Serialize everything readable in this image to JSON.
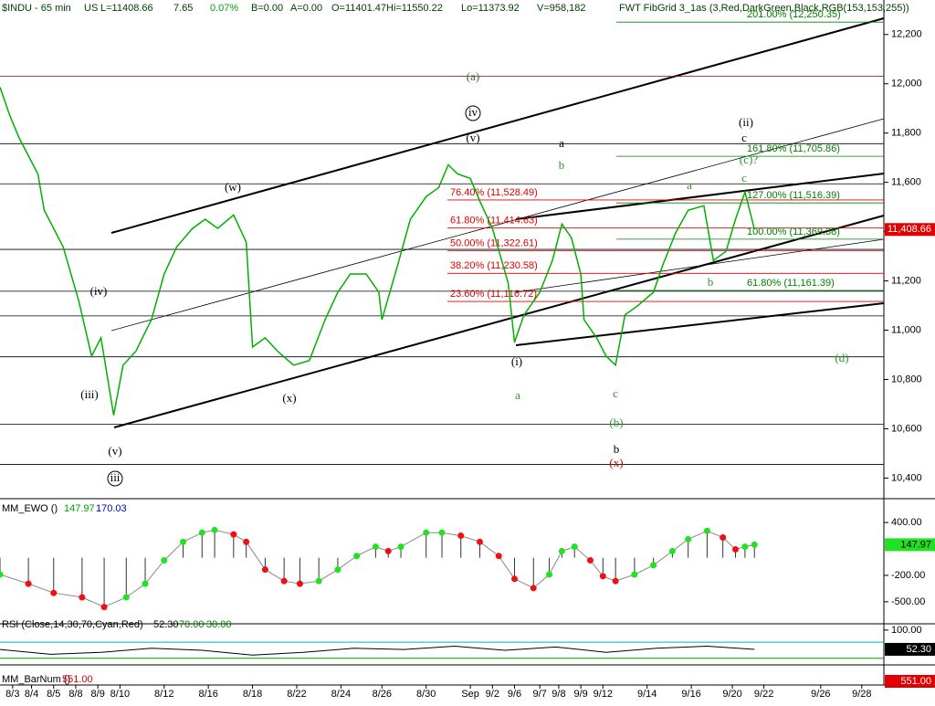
{
  "chart_data": [
    {
      "type": "line",
      "panel": "price",
      "header": [
        "$INDU - 65 min",
        "US",
        "L=11408.66",
        "7.65",
        "0.07%",
        "B=0.00",
        "A=0.00",
        "O=11401.47",
        "Hi=11550.22",
        "Lo=11373.92",
        "V=958,182",
        "FWT FibGrid 3_1as (3,Red,DarkGreen,Black,RGB(153,153,255))"
      ],
      "color": "#00b000",
      "x": [
        0,
        3,
        6,
        12,
        14,
        20,
        25,
        29,
        32,
        36,
        39,
        43,
        48,
        52,
        56,
        61,
        65,
        69,
        74,
        78,
        80,
        84,
        88,
        93,
        98,
        103,
        107,
        111,
        116,
        120,
        121,
        126,
        130,
        135,
        139,
        142,
        145,
        149,
        152,
        156,
        161,
        163,
        166,
        171,
        175,
        178,
        181,
        184,
        185,
        189,
        192,
        195,
        198,
        202,
        207,
        210,
        214,
        218,
        223,
        226,
        230,
        233,
        236,
        239
      ],
      "values": [
        11986,
        11875,
        11782,
        11634,
        11487,
        11339,
        11117,
        10895,
        10969,
        10655,
        10858,
        10914,
        11043,
        11228,
        11339,
        11413,
        11450,
        11413,
        11468,
        11357,
        10932,
        10969,
        10914,
        10858,
        10877,
        11043,
        11154,
        11228,
        11228,
        11154,
        11043,
        11265,
        11450,
        11542,
        11579,
        11671,
        11634,
        11616,
        11524,
        11413,
        11191,
        10951,
        11062,
        11154,
        11283,
        11431,
        11376,
        11228,
        11043,
        10969,
        10895,
        10858,
        11062,
        11099,
        11154,
        11265,
        11394,
        11487,
        11505,
        11283,
        11320,
        11450,
        11561,
        11409
      ],
      "xlim": [
        0,
        280
      ],
      "xticks": [
        {
          "value": 4,
          "label": "8/3"
        },
        {
          "value": 10,
          "label": "8/4"
        },
        {
          "value": 17,
          "label": "8/5"
        },
        {
          "value": 24,
          "label": "8/8"
        },
        {
          "value": 31,
          "label": "8/9"
        },
        {
          "value": 38,
          "label": "8/10"
        },
        {
          "value": 52,
          "label": "8/12"
        },
        {
          "value": 66,
          "label": "8/16"
        },
        {
          "value": 80,
          "label": "8/18"
        },
        {
          "value": 94,
          "label": "8/22"
        },
        {
          "value": 108,
          "label": "8/24"
        },
        {
          "value": 121,
          "label": "8/26"
        },
        {
          "value": 135,
          "label": "8/30"
        },
        {
          "value": 149,
          "label": "Sep"
        },
        {
          "value": 156,
          "label": "9/2"
        },
        {
          "value": 163,
          "label": "9/6"
        },
        {
          "value": 171,
          "label": "9/7"
        },
        {
          "value": 177,
          "label": "9/8"
        },
        {
          "value": 184,
          "label": "9/9"
        },
        {
          "value": 191,
          "label": "9/12"
        },
        {
          "value": 205,
          "label": "9/14"
        },
        {
          "value": 219,
          "label": "9/16"
        },
        {
          "value": 232,
          "label": "9/20"
        },
        {
          "value": 242,
          "label": "9/22"
        },
        {
          "value": 260,
          "label": "9/26"
        },
        {
          "value": 273,
          "label": "9/28"
        }
      ],
      "ylim": [
        10320,
        12340
      ],
      "yticks": [
        {
          "value": 12200,
          "label": "12,200"
        },
        {
          "value": 12000,
          "label": "12,000"
        },
        {
          "value": 11800,
          "label": "11,800"
        },
        {
          "value": 11600,
          "label": "11,600"
        },
        {
          "value": 11400,
          "label": "11,400"
        },
        {
          "value": 11200,
          "label": "11,200"
        },
        {
          "value": 11000,
          "label": "11,000"
        },
        {
          "value": 10800,
          "label": "10,800"
        },
        {
          "value": 10600,
          "label": "10,600"
        },
        {
          "value": 10400,
          "label": "10,400"
        }
      ],
      "last": {
        "value": 11408.66,
        "label": "11,408.66"
      },
      "levels": [
        12030,
        11757,
        11594,
        11328,
        11158,
        11058,
        10892,
        10618,
        10455
      ],
      "fib_levels": [
        {
          "label": "76.40% (11,528.49)",
          "value": 11528.49,
          "color": "#e00000"
        },
        {
          "label": "61.80% (11,414.63)",
          "value": 11414.63,
          "color": "#e00000"
        },
        {
          "label": "50.00% (11,322.61)",
          "value": 11322.61,
          "color": "#e00000"
        },
        {
          "label": "38.20% (11,230.58)",
          "value": 11230.58,
          "color": "#e00000"
        },
        {
          "label": "23.60% (11,116.72)",
          "value": 11116.72,
          "color": "#e00000"
        },
        {
          "label": "201.00% (12,250.35)",
          "value": 12250.35,
          "color": "#008000"
        },
        {
          "label": "161.80% (11,705.86)",
          "value": 11705.86,
          "color": "#008000"
        },
        {
          "label": "127.00% (11,516.39)",
          "value": 11516.39,
          "color": "#008000"
        },
        {
          "label": "100.00% (11,369.38)",
          "value": 11369.38,
          "color": "#008000"
        },
        {
          "label": "61.80% (11,161.39)",
          "value": 11161.39,
          "color": "#008000"
        }
      ],
      "annotations": [
        "(a)",
        "iv",
        "(v)",
        "a",
        "b",
        "(ii)",
        "c",
        "(c)?",
        "c",
        "a",
        "(w)",
        "(iv)",
        "(iii)",
        "(v)",
        "iii",
        "(x)",
        "(i)",
        "a",
        "c",
        "(b)",
        "b",
        "(x)",
        "b",
        "(d)"
      ]
    },
    {
      "type": "oscillator",
      "panel": "ewo",
      "title": "MM_EWO ()",
      "up_color": "#22e022",
      "down_color": "#ee1111",
      "x": [
        0,
        9,
        17,
        26,
        33,
        40,
        46,
        52,
        58,
        64,
        68,
        74,
        78,
        84,
        90,
        95,
        101,
        107,
        113,
        119,
        123,
        127,
        135,
        140,
        146,
        152,
        158,
        163,
        169,
        174,
        178,
        182,
        187,
        191,
        195,
        201,
        207,
        213,
        218,
        224,
        229,
        233,
        236,
        239
      ],
      "values": [
        -190,
        -295,
        -400,
        -450,
        -560,
        -450,
        -295,
        -30,
        180,
        285,
        315,
        265,
        180,
        -135,
        -265,
        -295,
        -265,
        -135,
        20,
        125,
        75,
        125,
        285,
        285,
        250,
        180,
        20,
        -240,
        -345,
        -190,
        75,
        125,
        -30,
        -210,
        -265,
        -190,
        -85,
        75,
        210,
        305,
        230,
        95,
        125,
        147.97
      ],
      "last": {
        "value": 147.97,
        "label": "147.97"
      },
      "signal": {
        "value": 170.03,
        "label": "170.03"
      },
      "ylim": [
        -740,
        650
      ],
      "yticks": [
        {
          "value": 400,
          "label": "400.00"
        },
        {
          "value": -200,
          "label": "-200.00"
        },
        {
          "value": -500,
          "label": "-500.00"
        }
      ]
    },
    {
      "type": "line",
      "panel": "rsi",
      "title": "RSI (Close,14,30,70,Cyan,Red)",
      "color": "#000000",
      "x": [
        0,
        16,
        32,
        48,
        64,
        80,
        96,
        112,
        128,
        144,
        160,
        176,
        192,
        208,
        224,
        239
      ],
      "values": [
        52,
        40,
        45,
        55,
        50,
        38,
        45,
        55,
        52,
        60,
        50,
        58,
        45,
        55,
        60,
        52.3
      ],
      "last": {
        "value": 52.3,
        "label": "52.30"
      },
      "bands": [
        {
          "value": 70,
          "label": "70.00"
        },
        {
          "value": 30,
          "label": "30.00"
        }
      ],
      "ylim": [
        16,
        111
      ],
      "yticks": [
        {
          "value": 100,
          "label": "100.00"
        }
      ]
    },
    {
      "type": "counter",
      "panel": "barnum",
      "title": "MM_BarNum ()",
      "last": {
        "value": 551,
        "label": "551.00"
      }
    }
  ]
}
